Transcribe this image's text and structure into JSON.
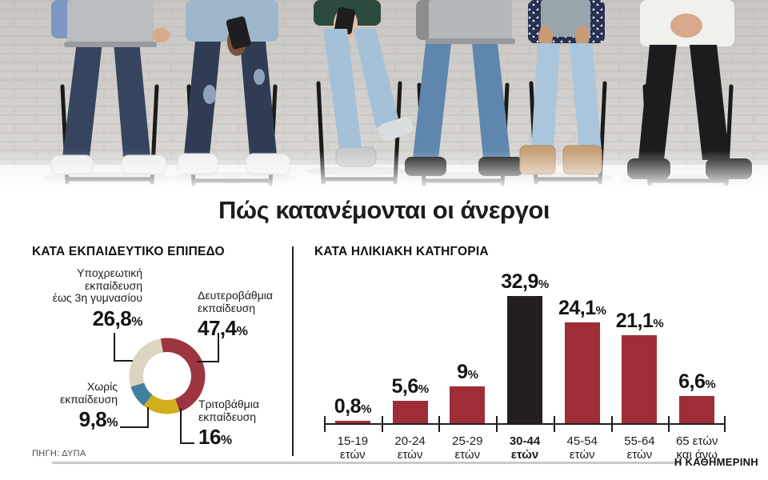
{
  "title": "Πώς κατανέμονται οι άνεργοι",
  "percent_sign": "%",
  "source": "ΠΗΓΗ: ΔΥΠΑ",
  "brand": "Η ΚΑΘΗΜΕΡΙΝΗ",
  "colors": {
    "title_red": "#9c2b33",
    "bar_red": "#9e2d37",
    "bar_black": "#231f20",
    "donut_red": "#9d3540",
    "donut_yellow": "#d2ae1c",
    "donut_blue": "#41809f",
    "donut_beige": "#ddd4c2",
    "axis": "#1d1d1d",
    "footer_rule": "#c9c9c9"
  },
  "chart_data": [
    {
      "type": "pie",
      "title": "ΚΑΤΑ ΕΚΠΑΙΔΕΥΤΙΚΟ ΕΠΙΠΕΔΟ",
      "donut": true,
      "start_angle_deg": -10,
      "direction": "clockwise",
      "slices": [
        {
          "label": "Δευτεροβάθμια εκπαίδευση",
          "label_display": "Δευτεροβάθμια\nεκπαίδευση",
          "value": 47.4,
          "display": "47,4",
          "color": "#9d3540"
        },
        {
          "label": "Τριτοβάθμια εκπαίδευση",
          "label_display": "Τριτοβάθμια\nεκπαίδευση",
          "value": 16,
          "display": "16",
          "color": "#d2ae1c"
        },
        {
          "label": "Χωρίς εκπαίδευση",
          "label_display": "Χωρίς\nεκπαίδευση",
          "value": 9.8,
          "display": "9,8",
          "color": "#41809f"
        },
        {
          "label": "Υποχρεωτική εκπαίδευση έως 3η γυμνασίου",
          "label_display": "Υποχρεωτική\nεκπαίδευση\nέως 3η γυμνασίου",
          "value": 26.8,
          "display": "26,8",
          "color": "#ddd4c2"
        }
      ]
    },
    {
      "type": "bar",
      "title": "ΚΑΤΑ ΗΛΙΚΙΑΚΗ ΚΑΤΗΓΟΡΙΑ",
      "categories": [
        {
          "line1": "15-19",
          "line2": "ετών",
          "bold": false
        },
        {
          "line1": "20-24",
          "line2": "ετών",
          "bold": false
        },
        {
          "line1": "25-29",
          "line2": "ετών",
          "bold": false
        },
        {
          "line1": "30-44",
          "line2": "ετών",
          "bold": true
        },
        {
          "line1": "45-54",
          "line2": "ετών",
          "bold": false
        },
        {
          "line1": "55-64",
          "line2": "ετών",
          "bold": false
        },
        {
          "line1": "65 ετών",
          "line2": "και άνω",
          "bold": false
        }
      ],
      "values": [
        0.8,
        5.6,
        9,
        32.9,
        24.1,
        21.1,
        6.6
      ],
      "displays": [
        "0,8",
        "5,6",
        "9",
        "32,9",
        "24,1",
        "21,1",
        "6,6"
      ],
      "highlight_index": 3,
      "bar_color": "#9e2d37",
      "highlight_color": "#231f20",
      "ylim": [
        0,
        35
      ],
      "xlabel": "",
      "ylabel": ""
    }
  ]
}
